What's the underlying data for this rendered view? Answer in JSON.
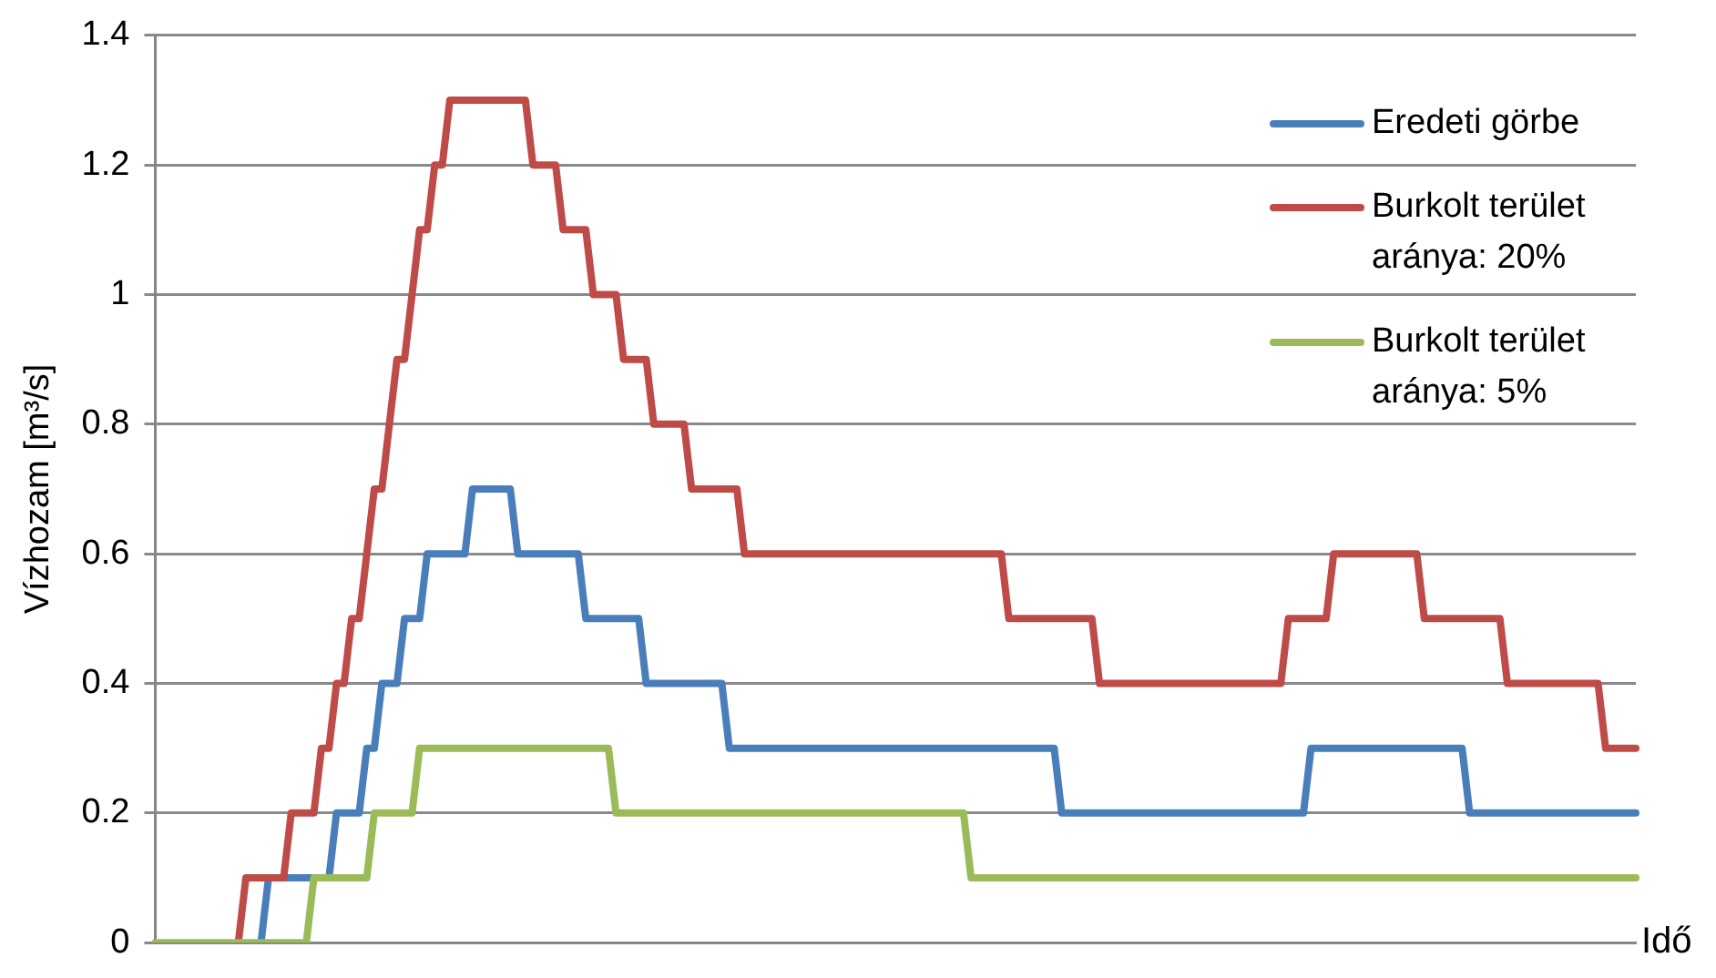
{
  "chart_data": {
    "type": "line",
    "xlabel": "Idő",
    "ylabel": "Vízhozam [m³/s]",
    "ylim": [
      0,
      1.4
    ],
    "yticks": [
      0,
      0.2,
      0.4,
      0.6,
      0.8,
      1,
      1.2,
      1.4
    ],
    "grid": "y",
    "legend": "top right",
    "tick_labels": "y",
    "marker": "none",
    "categories": [
      null,
      null,
      null,
      null,
      null,
      null,
      null,
      null,
      null,
      null,
      null,
      null,
      null,
      null,
      null,
      null,
      null,
      null,
      null,
      null,
      null,
      null,
      null,
      null,
      null,
      null,
      null,
      null,
      null,
      null,
      null,
      null,
      null,
      null,
      null,
      null,
      null,
      null,
      null,
      null,
      null,
      null,
      null,
      null,
      null,
      null,
      null,
      null,
      null,
      null,
      null,
      null,
      null,
      null,
      null,
      null,
      null,
      null,
      null,
      null,
      null,
      null,
      null,
      null,
      null,
      null,
      null,
      null,
      null,
      null,
      null,
      null,
      null,
      null,
      null,
      null,
      null,
      null,
      null,
      null,
      null,
      null,
      null,
      null,
      null,
      null,
      null,
      null,
      null,
      null,
      null,
      null,
      null,
      null,
      null,
      null,
      null,
      null,
      null,
      null,
      null,
      null,
      null,
      null,
      null,
      null,
      null,
      null,
      null,
      null,
      null,
      null,
      null,
      null,
      null,
      null,
      null,
      null,
      null,
      null,
      null,
      null,
      null,
      null,
      null,
      null,
      null,
      null,
      null,
      null,
      null,
      null,
      null,
      null,
      null,
      null,
      null,
      null,
      null,
      null,
      null,
      null,
      null,
      null,
      null,
      null,
      null,
      null,
      null,
      null,
      null,
      null,
      null,
      null,
      null,
      null,
      null,
      null,
      null,
      null,
      null,
      null,
      null,
      null,
      null,
      null,
      null,
      null,
      null,
      null,
      null,
      null,
      null,
      null,
      null,
      null,
      null,
      null,
      null,
      null,
      null,
      null,
      null,
      null,
      null,
      null,
      null,
      null,
      null,
      null,
      null,
      null,
      null,
      null,
      null,
      null,
      null
    ],
    "series": [
      {
        "name": "Eredeti görbe",
        "color": "#4a7ebb",
        "values": [
          null,
          null,
          null,
          null,
          null,
          null,
          null,
          null,
          null,
          null,
          null,
          null,
          null,
          null,
          0,
          0.1,
          0.1,
          0.1,
          0.1,
          0.1,
          0.1,
          0.1,
          0.1,
          0.1,
          0.2,
          0.2,
          0.2,
          0.2,
          0.3,
          0.3,
          0.4,
          0.4,
          0.4,
          0.5,
          0.5,
          0.5,
          0.6,
          0.6,
          0.6,
          0.6,
          0.6,
          0.6,
          0.7,
          0.7,
          0.7,
          0.7,
          0.7,
          0.7,
          0.6,
          0.6,
          0.6,
          0.6,
          0.6,
          0.6,
          0.6,
          0.6,
          0.6,
          0.5,
          0.5,
          0.5,
          0.5,
          0.5,
          0.5,
          0.5,
          0.5,
          0.4,
          0.4,
          0.4,
          0.4,
          0.4,
          0.4,
          0.4,
          0.4,
          0.4,
          0.4,
          0.4,
          0.3,
          0.3,
          0.3,
          0.3,
          0.3,
          0.3,
          0.3,
          0.3,
          0.3,
          0.3,
          0.3,
          0.3,
          0.3,
          0.3,
          0.3,
          0.3,
          0.3,
          0.3,
          0.3,
          0.3,
          0.3,
          0.3,
          0.3,
          0.3,
          0.3,
          0.3,
          0.3,
          0.3,
          0.3,
          0.3,
          0.3,
          0.3,
          0.3,
          0.3,
          0.3,
          0.3,
          0.3,
          0.3,
          0.3,
          0.3,
          0.3,
          0.3,
          0.3,
          0.3,
          0.2,
          0.2,
          0.2,
          0.2,
          0.2,
          0.2,
          0.2,
          0.2,
          0.2,
          0.2,
          0.2,
          0.2,
          0.2,
          0.2,
          0.2,
          0.2,
          0.2,
          0.2,
          0.2,
          0.2,
          0.2,
          0.2,
          0.2,
          0.2,
          0.2,
          0.2,
          0.2,
          0.2,
          0.2,
          0.2,
          0.2,
          0.2,
          0.2,
          0.3,
          0.3,
          0.3,
          0.3,
          0.3,
          0.3,
          0.3,
          0.3,
          0.3,
          0.3,
          0.3,
          0.3,
          0.3,
          0.3,
          0.3,
          0.3,
          0.3,
          0.3,
          0.3,
          0.3,
          0.3,
          0.2,
          0.2,
          0.2,
          0.2,
          0.2,
          0.2,
          0.2,
          0.2,
          0.2,
          0.2,
          0.2,
          0.2,
          0.2,
          0.2,
          0.2,
          0.2,
          0.2,
          0.2,
          0.2,
          0.2,
          0.2,
          0.2,
          0.2
        ]
      },
      {
        "name": "Burkolt terület aránya: 20%",
        "color": "#be4b48",
        "values": [
          null,
          null,
          null,
          null,
          null,
          null,
          null,
          null,
          null,
          null,
          null,
          0,
          0.1,
          0.1,
          0.1,
          0.1,
          0.1,
          0.1,
          0.2,
          0.2,
          0.2,
          0.2,
          0.3,
          0.3,
          0.4,
          0.4,
          0.5,
          0.5,
          0.6,
          0.7,
          0.7,
          0.8,
          0.9,
          0.9,
          1,
          1.1,
          1.1,
          1.2,
          1.2,
          1.3,
          1.3,
          1.3,
          1.3,
          1.3,
          1.3,
          1.3,
          1.3,
          1.3,
          1.3,
          1.3,
          1.2,
          1.2,
          1.2,
          1.2,
          1.1,
          1.1,
          1.1,
          1.1,
          1,
          1,
          1,
          1,
          0.9,
          0.9,
          0.9,
          0.9,
          0.8,
          0.8,
          0.8,
          0.8,
          0.8,
          0.7,
          0.7,
          0.7,
          0.7,
          0.7,
          0.7,
          0.7,
          0.6,
          0.6,
          0.6,
          0.6,
          0.6,
          0.6,
          0.6,
          0.6,
          0.6,
          0.6,
          0.6,
          0.6,
          0.6,
          0.6,
          0.6,
          0.6,
          0.6,
          0.6,
          0.6,
          0.6,
          0.6,
          0.6,
          0.6,
          0.6,
          0.6,
          0.6,
          0.6,
          0.6,
          0.6,
          0.6,
          0.6,
          0.6,
          0.6,
          0.6,
          0.6,
          0.5,
          0.5,
          0.5,
          0.5,
          0.5,
          0.5,
          0.5,
          0.5,
          0.5,
          0.5,
          0.5,
          0.5,
          0.4,
          0.4,
          0.4,
          0.4,
          0.4,
          0.4,
          0.4,
          0.4,
          0.4,
          0.4,
          0.4,
          0.4,
          0.4,
          0.4,
          0.4,
          0.4,
          0.4,
          0.4,
          0.4,
          0.4,
          0.4,
          0.4,
          0.4,
          0.4,
          0.4,
          0.5,
          0.5,
          0.5,
          0.5,
          0.5,
          0.5,
          0.6,
          0.6,
          0.6,
          0.6,
          0.6,
          0.6,
          0.6,
          0.6,
          0.6,
          0.6,
          0.6,
          0.6,
          0.5,
          0.5,
          0.5,
          0.5,
          0.5,
          0.5,
          0.5,
          0.5,
          0.5,
          0.5,
          0.5,
          0.4,
          0.4,
          0.4,
          0.4,
          0.4,
          0.4,
          0.4,
          0.4,
          0.4,
          0.4,
          0.4,
          0.4,
          0.4,
          0.3,
          0.3,
          0.3,
          0.3,
          0.3
        ]
      },
      {
        "name": "Burkolt terület aránya: 5%",
        "color": "#9bbb59",
        "values": [
          0,
          0,
          0,
          0,
          0,
          0,
          0,
          0,
          0,
          0,
          0,
          0,
          0,
          0,
          0,
          0,
          0,
          0,
          0,
          0,
          0,
          0.1,
          0.1,
          0.1,
          0.1,
          0.1,
          0.1,
          0.1,
          0.1,
          0.2,
          0.2,
          0.2,
          0.2,
          0.2,
          0.2,
          0.3,
          0.3,
          0.3,
          0.3,
          0.3,
          0.3,
          0.3,
          0.3,
          0.3,
          0.3,
          0.3,
          0.3,
          0.3,
          0.3,
          0.3,
          0.3,
          0.3,
          0.3,
          0.3,
          0.3,
          0.3,
          0.3,
          0.3,
          0.3,
          0.3,
          0.3,
          0.2,
          0.2,
          0.2,
          0.2,
          0.2,
          0.2,
          0.2,
          0.2,
          0.2,
          0.2,
          0.2,
          0.2,
          0.2,
          0.2,
          0.2,
          0.2,
          0.2,
          0.2,
          0.2,
          0.2,
          0.2,
          0.2,
          0.2,
          0.2,
          0.2,
          0.2,
          0.2,
          0.2,
          0.2,
          0.2,
          0.2,
          0.2,
          0.2,
          0.2,
          0.2,
          0.2,
          0.2,
          0.2,
          0.2,
          0.2,
          0.2,
          0.2,
          0.2,
          0.2,
          0.2,
          0.2,
          0.2,
          0.1,
          0.1,
          0.1,
          0.1,
          0.1,
          0.1,
          0.1,
          0.1,
          0.1,
          0.1,
          0.1,
          0.1,
          0.1,
          0.1,
          0.1,
          0.1,
          0.1,
          0.1,
          0.1,
          0.1,
          0.1,
          0.1,
          0.1,
          0.1,
          0.1,
          0.1,
          0.1,
          0.1,
          0.1,
          0.1,
          0.1,
          0.1,
          0.1,
          0.1,
          0.1,
          0.1,
          0.1,
          0.1,
          0.1,
          0.1,
          0.1,
          0.1,
          0.1,
          0.1,
          0.1,
          0.1,
          0.1,
          0.1,
          0.1,
          0.1,
          0.1,
          0.1,
          0.1,
          0.1,
          0.1,
          0.1,
          0.1,
          0.1,
          0.1,
          0.1,
          0.1,
          0.1,
          0.1,
          0.1,
          0.1,
          0.1,
          0.1,
          0.1,
          0.1,
          0.1,
          0.1,
          0.1,
          0.1,
          0.1,
          0.1,
          0.1,
          0.1,
          0.1,
          0.1,
          0.1,
          0.1,
          0.1,
          0.1,
          0.1,
          0.1,
          0.1,
          0.1,
          0.1,
          0.1
        ]
      }
    ]
  }
}
